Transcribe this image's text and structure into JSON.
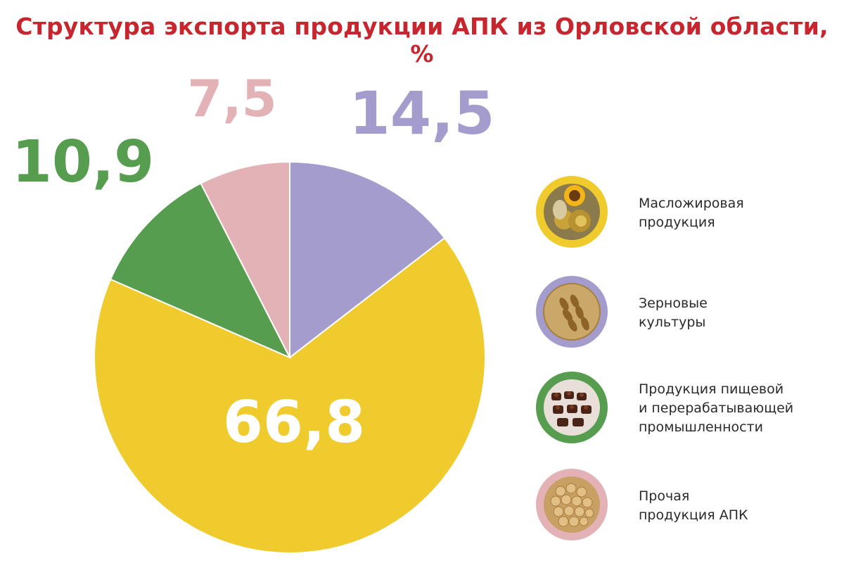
{
  "title": "Структура экспорта продукции АПК из Орловской области, %",
  "chart_data": {
    "type": "pie",
    "title": "Структура экспорта продукции АПК из Орловской области, %",
    "unit": "%",
    "start_angle_deg": 0,
    "direction": "clockwise",
    "slices": [
      {
        "key": "grain",
        "label": "Зерновые\nкультуры",
        "value": 14.5,
        "value_label": "14,5",
        "color": "#a49ccc",
        "label_color": "#a49ccc"
      },
      {
        "key": "oil",
        "label": "Масложировая\nпродукция",
        "value": 66.8,
        "value_label": "66,8",
        "color": "#f0cb2e",
        "label_color": "#ffffff"
      },
      {
        "key": "food",
        "label": "Продукция пищевой\nи перерабатывающей\nпромышленности",
        "value": 10.9,
        "value_label": "10,9",
        "color": "#579d4f",
        "label_color": "#579d4f"
      },
      {
        "key": "other",
        "label": "Прочая\nпродукция АПК",
        "value": 7.5,
        "value_label": "7,5",
        "color": "#e3b2b6",
        "label_color": "#e3b2b6"
      }
    ],
    "legend_order": [
      "oil",
      "grain",
      "food",
      "other"
    ],
    "legend_position": "right"
  },
  "legend": {
    "items": [
      {
        "text": "Масложировая\nпродукция",
        "ring_color": "#f0cb2e",
        "icon": "sunflower-oil-icon"
      },
      {
        "text": "Зерновые\nкультуры",
        "ring_color": "#a49ccc",
        "icon": "grain-icon"
      },
      {
        "text": "Продукция пищевой\nи перерабатывающей\nпромышленности",
        "ring_color": "#579d4f",
        "icon": "chocolates-icon"
      },
      {
        "text": "Прочая\nпродукция АПК",
        "ring_color": "#e3b2b6",
        "icon": "soybeans-icon"
      }
    ]
  }
}
